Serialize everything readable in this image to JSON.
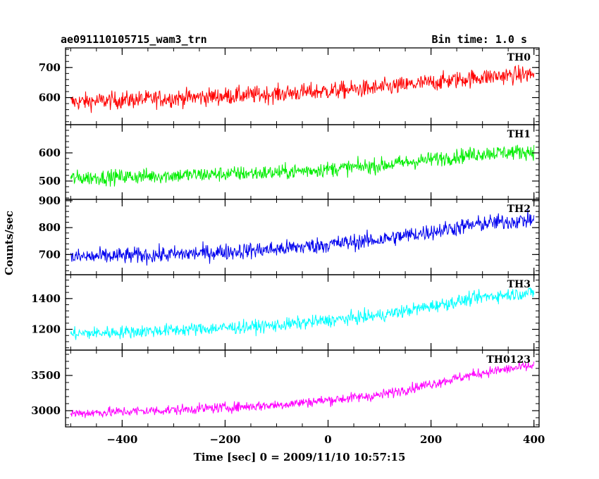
{
  "header": {
    "left_title": "ae091110105715_wam3_trn",
    "right_title": "Bin time: 1.0 s"
  },
  "chart_data": {
    "type": "line",
    "xlabel": "Time [sec] 0 = 2009/11/10 10:57:15",
    "ylabel": "Counts/sec",
    "xlim": [
      -510,
      410
    ],
    "xticks": [
      -400,
      -200,
      0,
      200,
      400
    ],
    "panels": [
      {
        "name": "TH0",
        "color": "#ff0000",
        "ylim": [
          510,
          765
        ],
        "yticks": [
          600,
          700
        ],
        "trend_x": [
          -500,
          -300,
          -100,
          100,
          300,
          400
        ],
        "trend_y": [
          585,
          598,
          612,
          632,
          668,
          678
        ],
        "spread": 38
      },
      {
        "name": "TH1",
        "color": "#00ee00",
        "ylim": [
          435,
          700
        ],
        "yticks": [
          500,
          600
        ],
        "trend_x": [
          -500,
          -300,
          -100,
          100,
          300,
          400
        ],
        "trend_y": [
          510,
          520,
          530,
          555,
          598,
          605
        ],
        "spread": 35
      },
      {
        "name": "TH2",
        "color": "#0000ee",
        "ylim": [
          625,
          905
        ],
        "yticks": [
          700,
          800,
          900
        ],
        "trend_x": [
          -500,
          -300,
          -100,
          100,
          300,
          400
        ],
        "trend_y": [
          690,
          700,
          720,
          755,
          815,
          830
        ],
        "spread": 40
      },
      {
        "name": "TH3",
        "color": "#00ffff",
        "ylim": [
          1065,
          1555
        ],
        "yticks": [
          1200,
          1400
        ],
        "trend_x": [
          -500,
          -300,
          -100,
          100,
          300,
          400
        ],
        "trend_y": [
          1170,
          1195,
          1225,
          1290,
          1410,
          1440
        ],
        "spread": 55
      },
      {
        "name": "TH0123",
        "color": "#ff00ff",
        "ylim": [
          2770,
          3860
        ],
        "yticks": [
          3000,
          3500
        ],
        "trend_x": [
          -500,
          -300,
          -100,
          100,
          300,
          400
        ],
        "trend_y": [
          2960,
          3010,
          3080,
          3220,
          3540,
          3640
        ],
        "spread": 95
      }
    ]
  }
}
